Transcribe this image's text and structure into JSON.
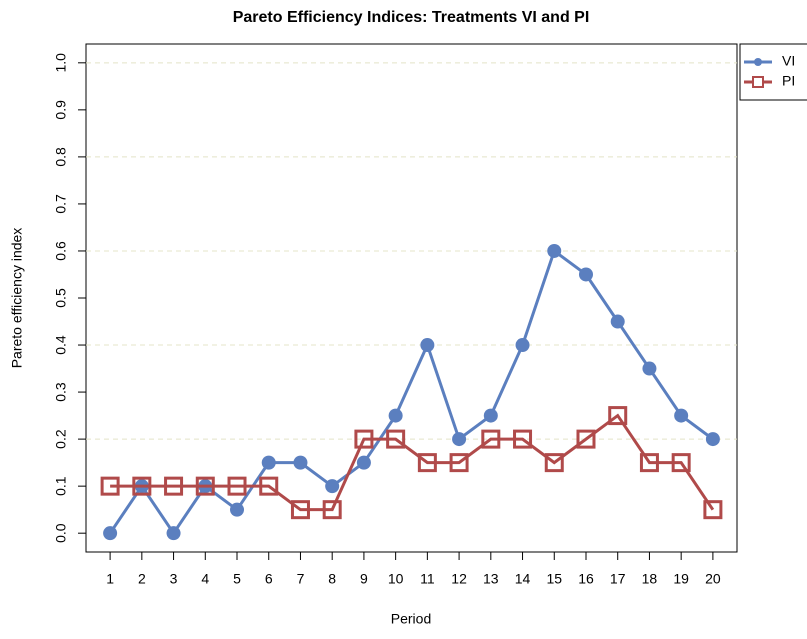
{
  "chart_data": {
    "type": "line",
    "title": "Pareto Efficiency Indices: Treatments VI and PI",
    "x_label": "Period",
    "y_label": "Pareto efficiency index",
    "x": [
      1,
      2,
      3,
      4,
      5,
      6,
      7,
      8,
      9,
      10,
      11,
      12,
      13,
      14,
      15,
      16,
      17,
      18,
      19,
      20
    ],
    "series": [
      {
        "name": "VI",
        "color": "#5b7fbf",
        "marker": "circle",
        "values": [
          0,
          0.1,
          0,
          0.1,
          0.05,
          0.15,
          0.15,
          0.1,
          0.15,
          0.25,
          0.4,
          0.2,
          0.25,
          0.4,
          0.6,
          0.55,
          0.45,
          0.35,
          0.25,
          0.2
        ]
      },
      {
        "name": "PI",
        "color": "#b04a4a",
        "marker": "square",
        "values": [
          0.1,
          0.1,
          0.1,
          0.1,
          0.1,
          0.1,
          0.05,
          0.05,
          0.2,
          0.2,
          0.15,
          0.15,
          0.2,
          0.2,
          0.15,
          0.2,
          0.25,
          0.15,
          0.15,
          0.05
        ]
      }
    ],
    "xlim": [
      0.24,
      20.76
    ],
    "xticks": [
      1,
      2,
      3,
      4,
      5,
      6,
      7,
      8,
      9,
      10,
      11,
      12,
      13,
      14,
      15,
      16,
      17,
      18,
      19,
      20
    ],
    "ylim": [
      -0.04,
      1.04
    ],
    "yticks": [
      {
        "value": 0,
        "label": "0.0"
      },
      0.1,
      0.2,
      0.3,
      0.4,
      0.5,
      0.6,
      0.7,
      0.8,
      0.9,
      {
        "value": 1,
        "label": "1.0"
      }
    ],
    "grid_lines": [
      0.2,
      0.4,
      0.6,
      0.8,
      1
    ],
    "legend": "outside-top-right"
  }
}
